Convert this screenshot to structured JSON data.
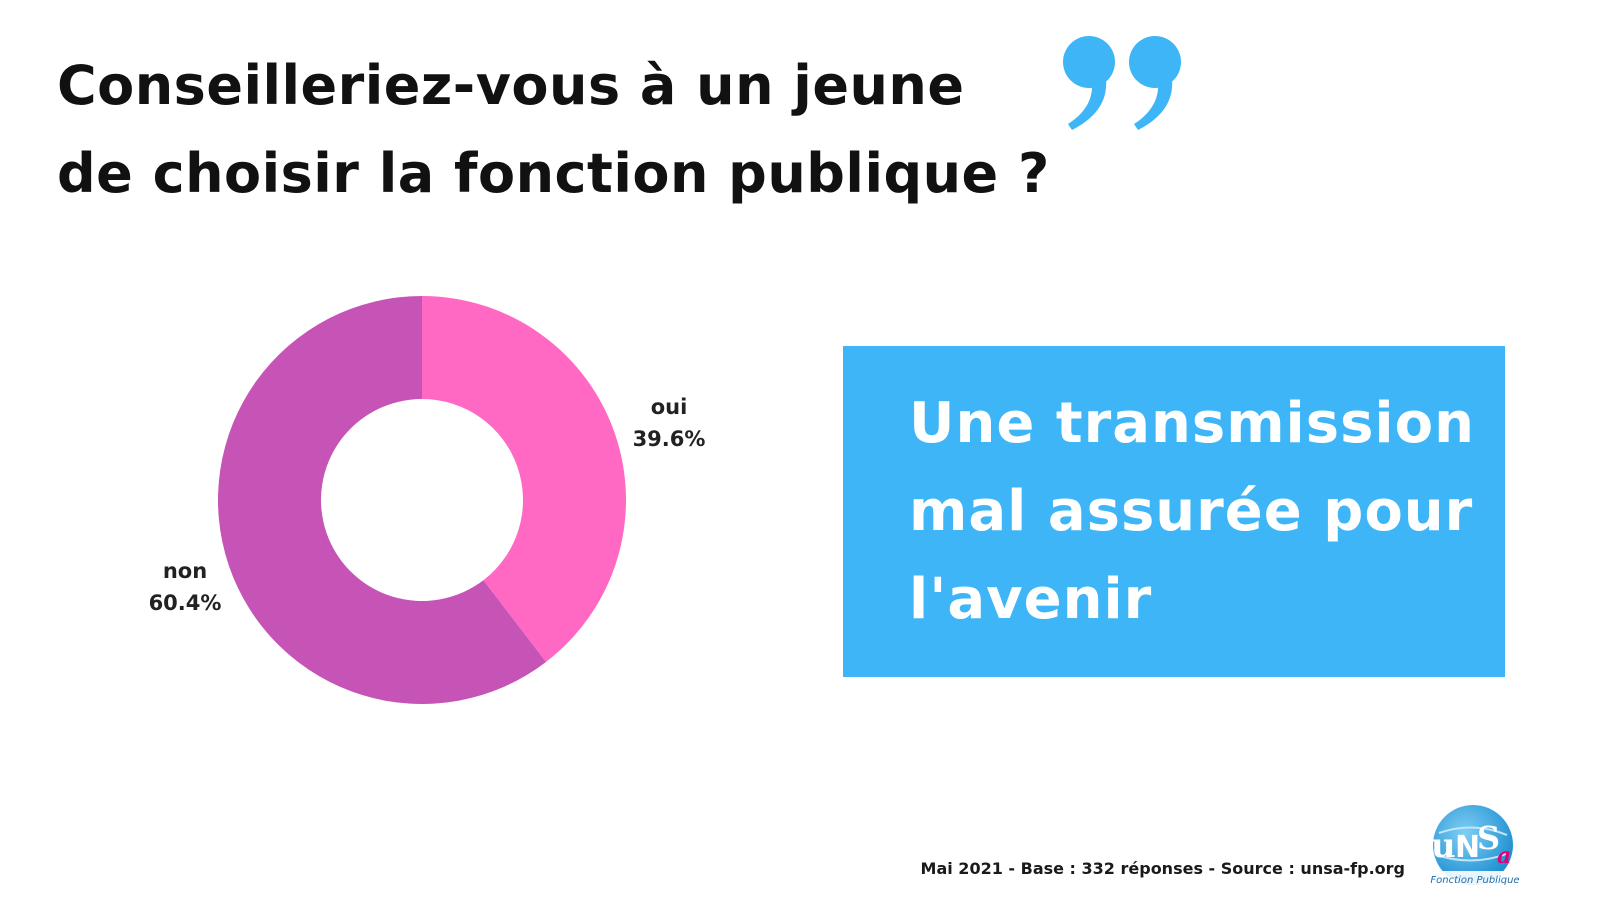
{
  "title": {
    "line1": "Conseilleriez-vous à un jeune",
    "line2": "de choisir la fonction publique ?"
  },
  "quote_icon": "closing-quote-icon",
  "chart_data": {
    "type": "pie",
    "hole": true,
    "slices": [
      {
        "label": "oui",
        "value": 39.6,
        "display": "39.6%",
        "color": "#ff69c4"
      },
      {
        "label": "non",
        "value": 60.4,
        "display": "60.4%",
        "color": "#c653b6"
      }
    ]
  },
  "callout": {
    "lines": [
      "Une transmission",
      "mal assurée pour",
      "l'avenir"
    ]
  },
  "footer": {
    "source": "Mai 2021 - Base : 332 réponses - Source : unsa-fp.org"
  },
  "logo": {
    "name": "unsa-fonction-publique-logo",
    "mark": "uNSa",
    "subtitle": "Fonction Publique"
  },
  "colors": {
    "accent_blue": "#3db5f7",
    "quote_blue": "#3db5f7",
    "text": "#111111"
  }
}
